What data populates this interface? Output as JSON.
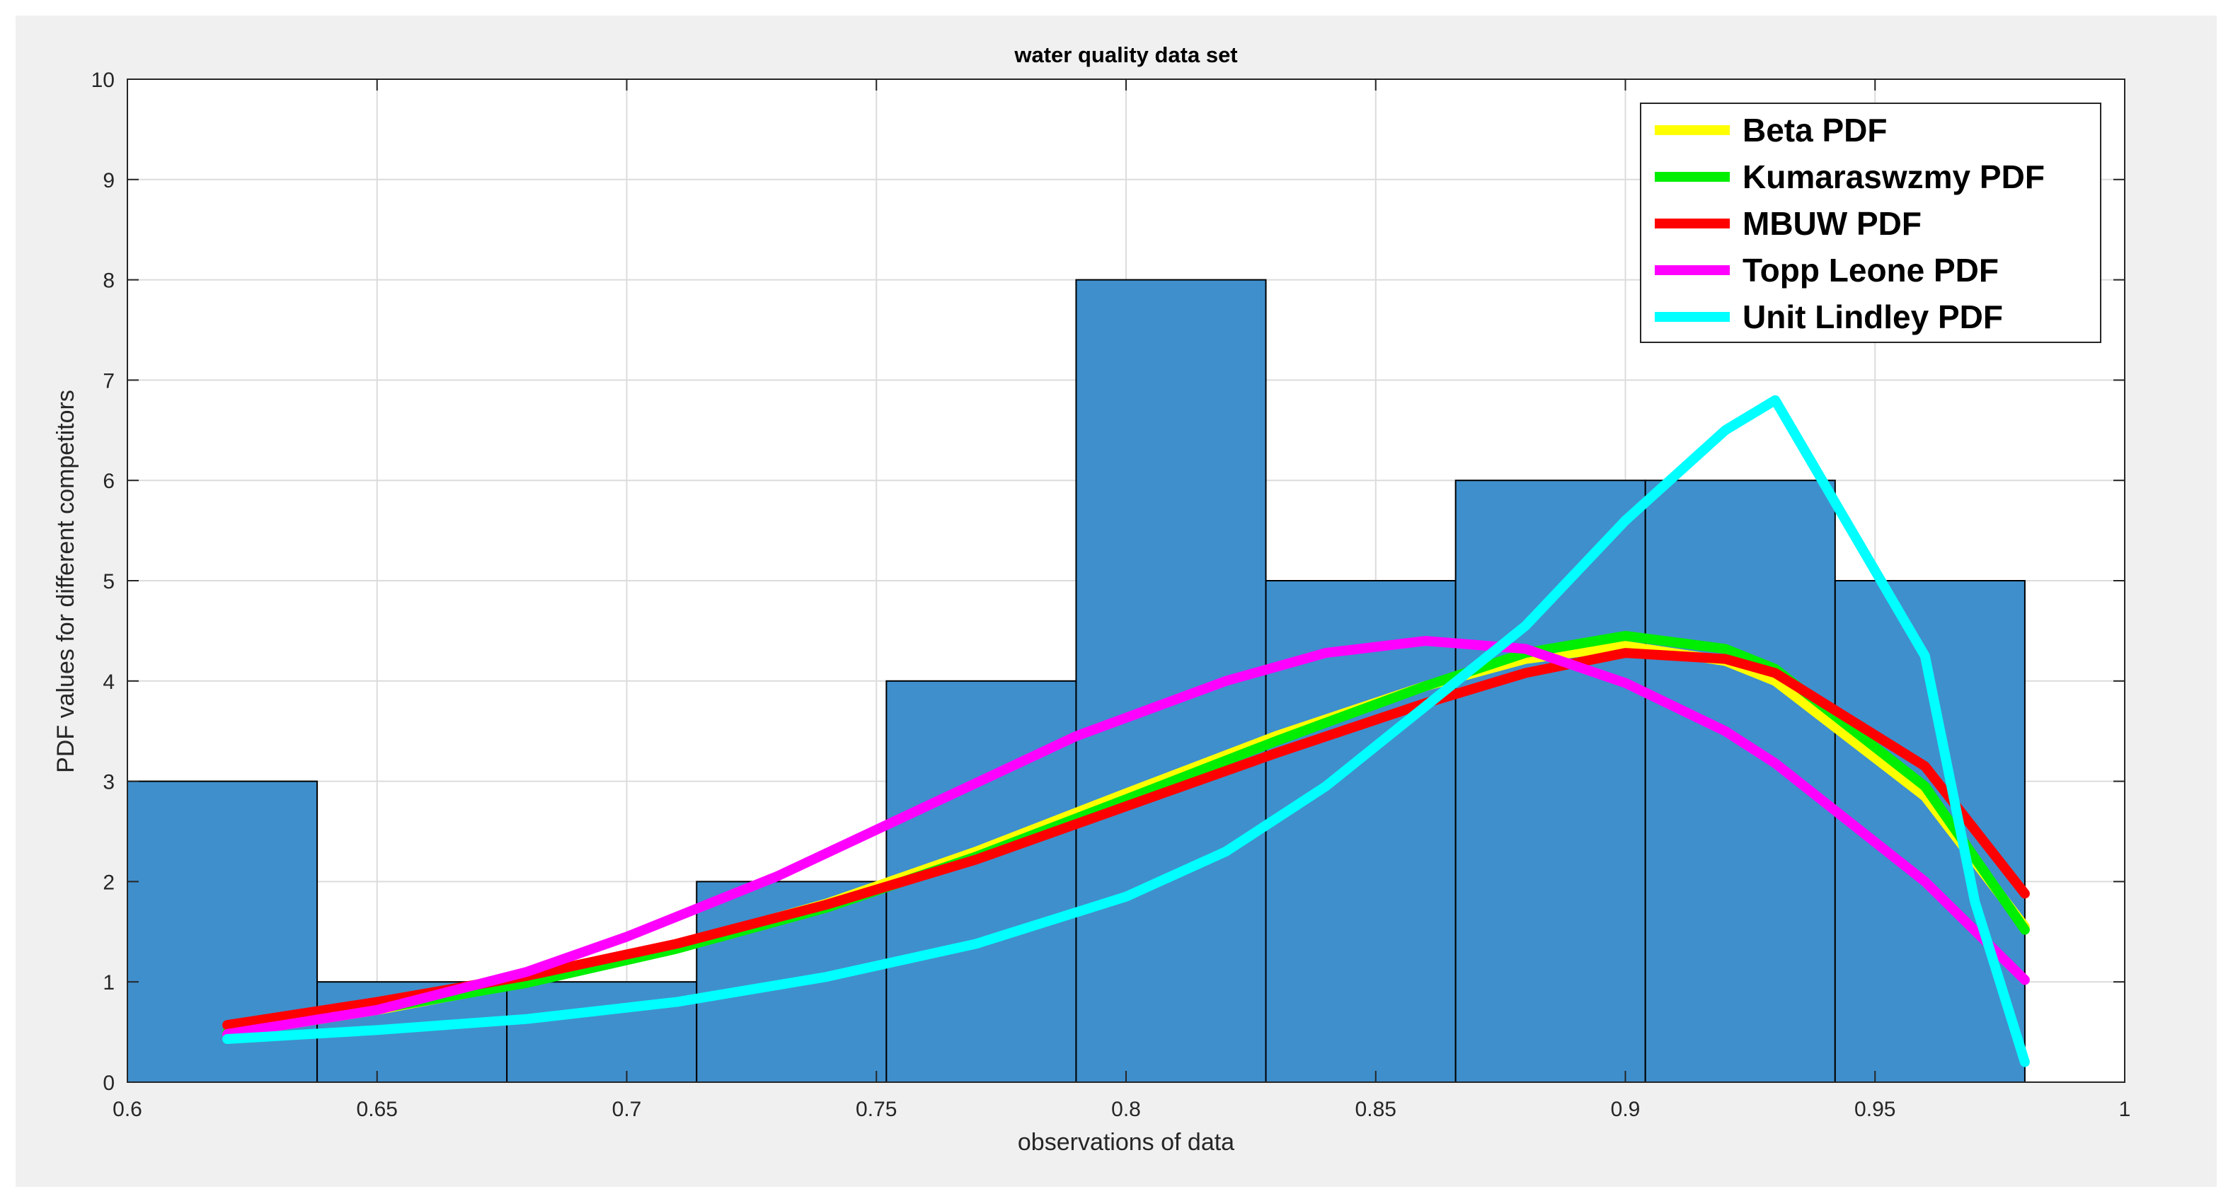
{
  "chart_data": {
    "type": "bar",
    "title": "water quality data set",
    "xlabel": "observations of  data",
    "ylabel": "PDF values for different competitors",
    "xlim": [
      0.6,
      1
    ],
    "ylim": [
      0,
      10
    ],
    "xticks": [
      "0.6",
      "0.65",
      "0.7",
      "0.75",
      "0.8",
      "0.85",
      "0.9",
      "0.95",
      "1"
    ],
    "yticks": [
      "0",
      "1",
      "2",
      "3",
      "4",
      "5",
      "6",
      "7",
      "8",
      "9",
      "10"
    ],
    "grid": true,
    "legend_position": "top-right",
    "histogram": {
      "bins": [
        {
          "x0": 0.6,
          "x1": 0.638,
          "value": 3
        },
        {
          "x0": 0.638,
          "x1": 0.676,
          "value": 1
        },
        {
          "x0": 0.676,
          "x1": 0.714,
          "value": 1
        },
        {
          "x0": 0.714,
          "x1": 0.752,
          "value": 2
        },
        {
          "x0": 0.752,
          "x1": 0.79,
          "value": 4
        },
        {
          "x0": 0.79,
          "x1": 0.828,
          "value": 8
        },
        {
          "x0": 0.828,
          "x1": 0.866,
          "value": 5
        },
        {
          "x0": 0.866,
          "x1": 0.904,
          "value": 6
        },
        {
          "x0": 0.904,
          "x1": 0.942,
          "value": 6
        },
        {
          "x0": 0.942,
          "x1": 0.98,
          "value": 5
        }
      ],
      "color": "#3f8fcc"
    },
    "series": [
      {
        "name": "Beta PDF",
        "color": "#ffff00",
        "x": [
          0.62,
          0.65,
          0.68,
          0.71,
          0.74,
          0.77,
          0.8,
          0.83,
          0.86,
          0.88,
          0.9,
          0.92,
          0.93,
          0.96,
          0.98
        ],
        "y": [
          0.48,
          0.72,
          1.0,
          1.36,
          1.78,
          2.3,
          2.88,
          3.45,
          3.95,
          4.22,
          4.35,
          4.2,
          4.0,
          2.85,
          1.55
        ]
      },
      {
        "name": "Kumaraswzmy PDF",
        "color": "#00ee00",
        "x": [
          0.62,
          0.65,
          0.68,
          0.71,
          0.74,
          0.77,
          0.8,
          0.83,
          0.86,
          0.88,
          0.9,
          0.92,
          0.93,
          0.96,
          0.98
        ],
        "y": [
          0.5,
          0.73,
          0.99,
          1.33,
          1.74,
          2.25,
          2.82,
          3.4,
          3.95,
          4.28,
          4.45,
          4.32,
          4.12,
          2.95,
          1.52
        ]
      },
      {
        "name": "MBUW PDF",
        "color": "#ff0000",
        "x": [
          0.62,
          0.65,
          0.68,
          0.71,
          0.74,
          0.77,
          0.8,
          0.83,
          0.86,
          0.88,
          0.9,
          0.92,
          0.93,
          0.96,
          0.98
        ],
        "y": [
          0.57,
          0.8,
          1.06,
          1.38,
          1.77,
          2.22,
          2.75,
          3.28,
          3.78,
          4.08,
          4.28,
          4.22,
          4.08,
          3.15,
          1.88
        ]
      },
      {
        "name": "Topp Leone PDF",
        "color": "#ff00ff",
        "x": [
          0.62,
          0.65,
          0.68,
          0.7,
          0.73,
          0.76,
          0.79,
          0.82,
          0.84,
          0.86,
          0.88,
          0.9,
          0.92,
          0.93,
          0.96,
          0.98
        ],
        "y": [
          0.48,
          0.72,
          1.1,
          1.45,
          2.05,
          2.75,
          3.45,
          4.0,
          4.28,
          4.4,
          4.32,
          3.98,
          3.5,
          3.18,
          2.0,
          1.02
        ]
      },
      {
        "name": "Unit Lindley PDF",
        "color": "#00ffff",
        "x": [
          0.62,
          0.65,
          0.68,
          0.71,
          0.74,
          0.77,
          0.8,
          0.82,
          0.84,
          0.86,
          0.88,
          0.9,
          0.92,
          0.93,
          0.96,
          0.97,
          0.98
        ],
        "y": [
          0.43,
          0.52,
          0.63,
          0.8,
          1.05,
          1.38,
          1.85,
          2.3,
          2.95,
          3.75,
          4.55,
          5.6,
          6.5,
          6.8,
          4.25,
          1.8,
          0.2
        ]
      }
    ]
  }
}
